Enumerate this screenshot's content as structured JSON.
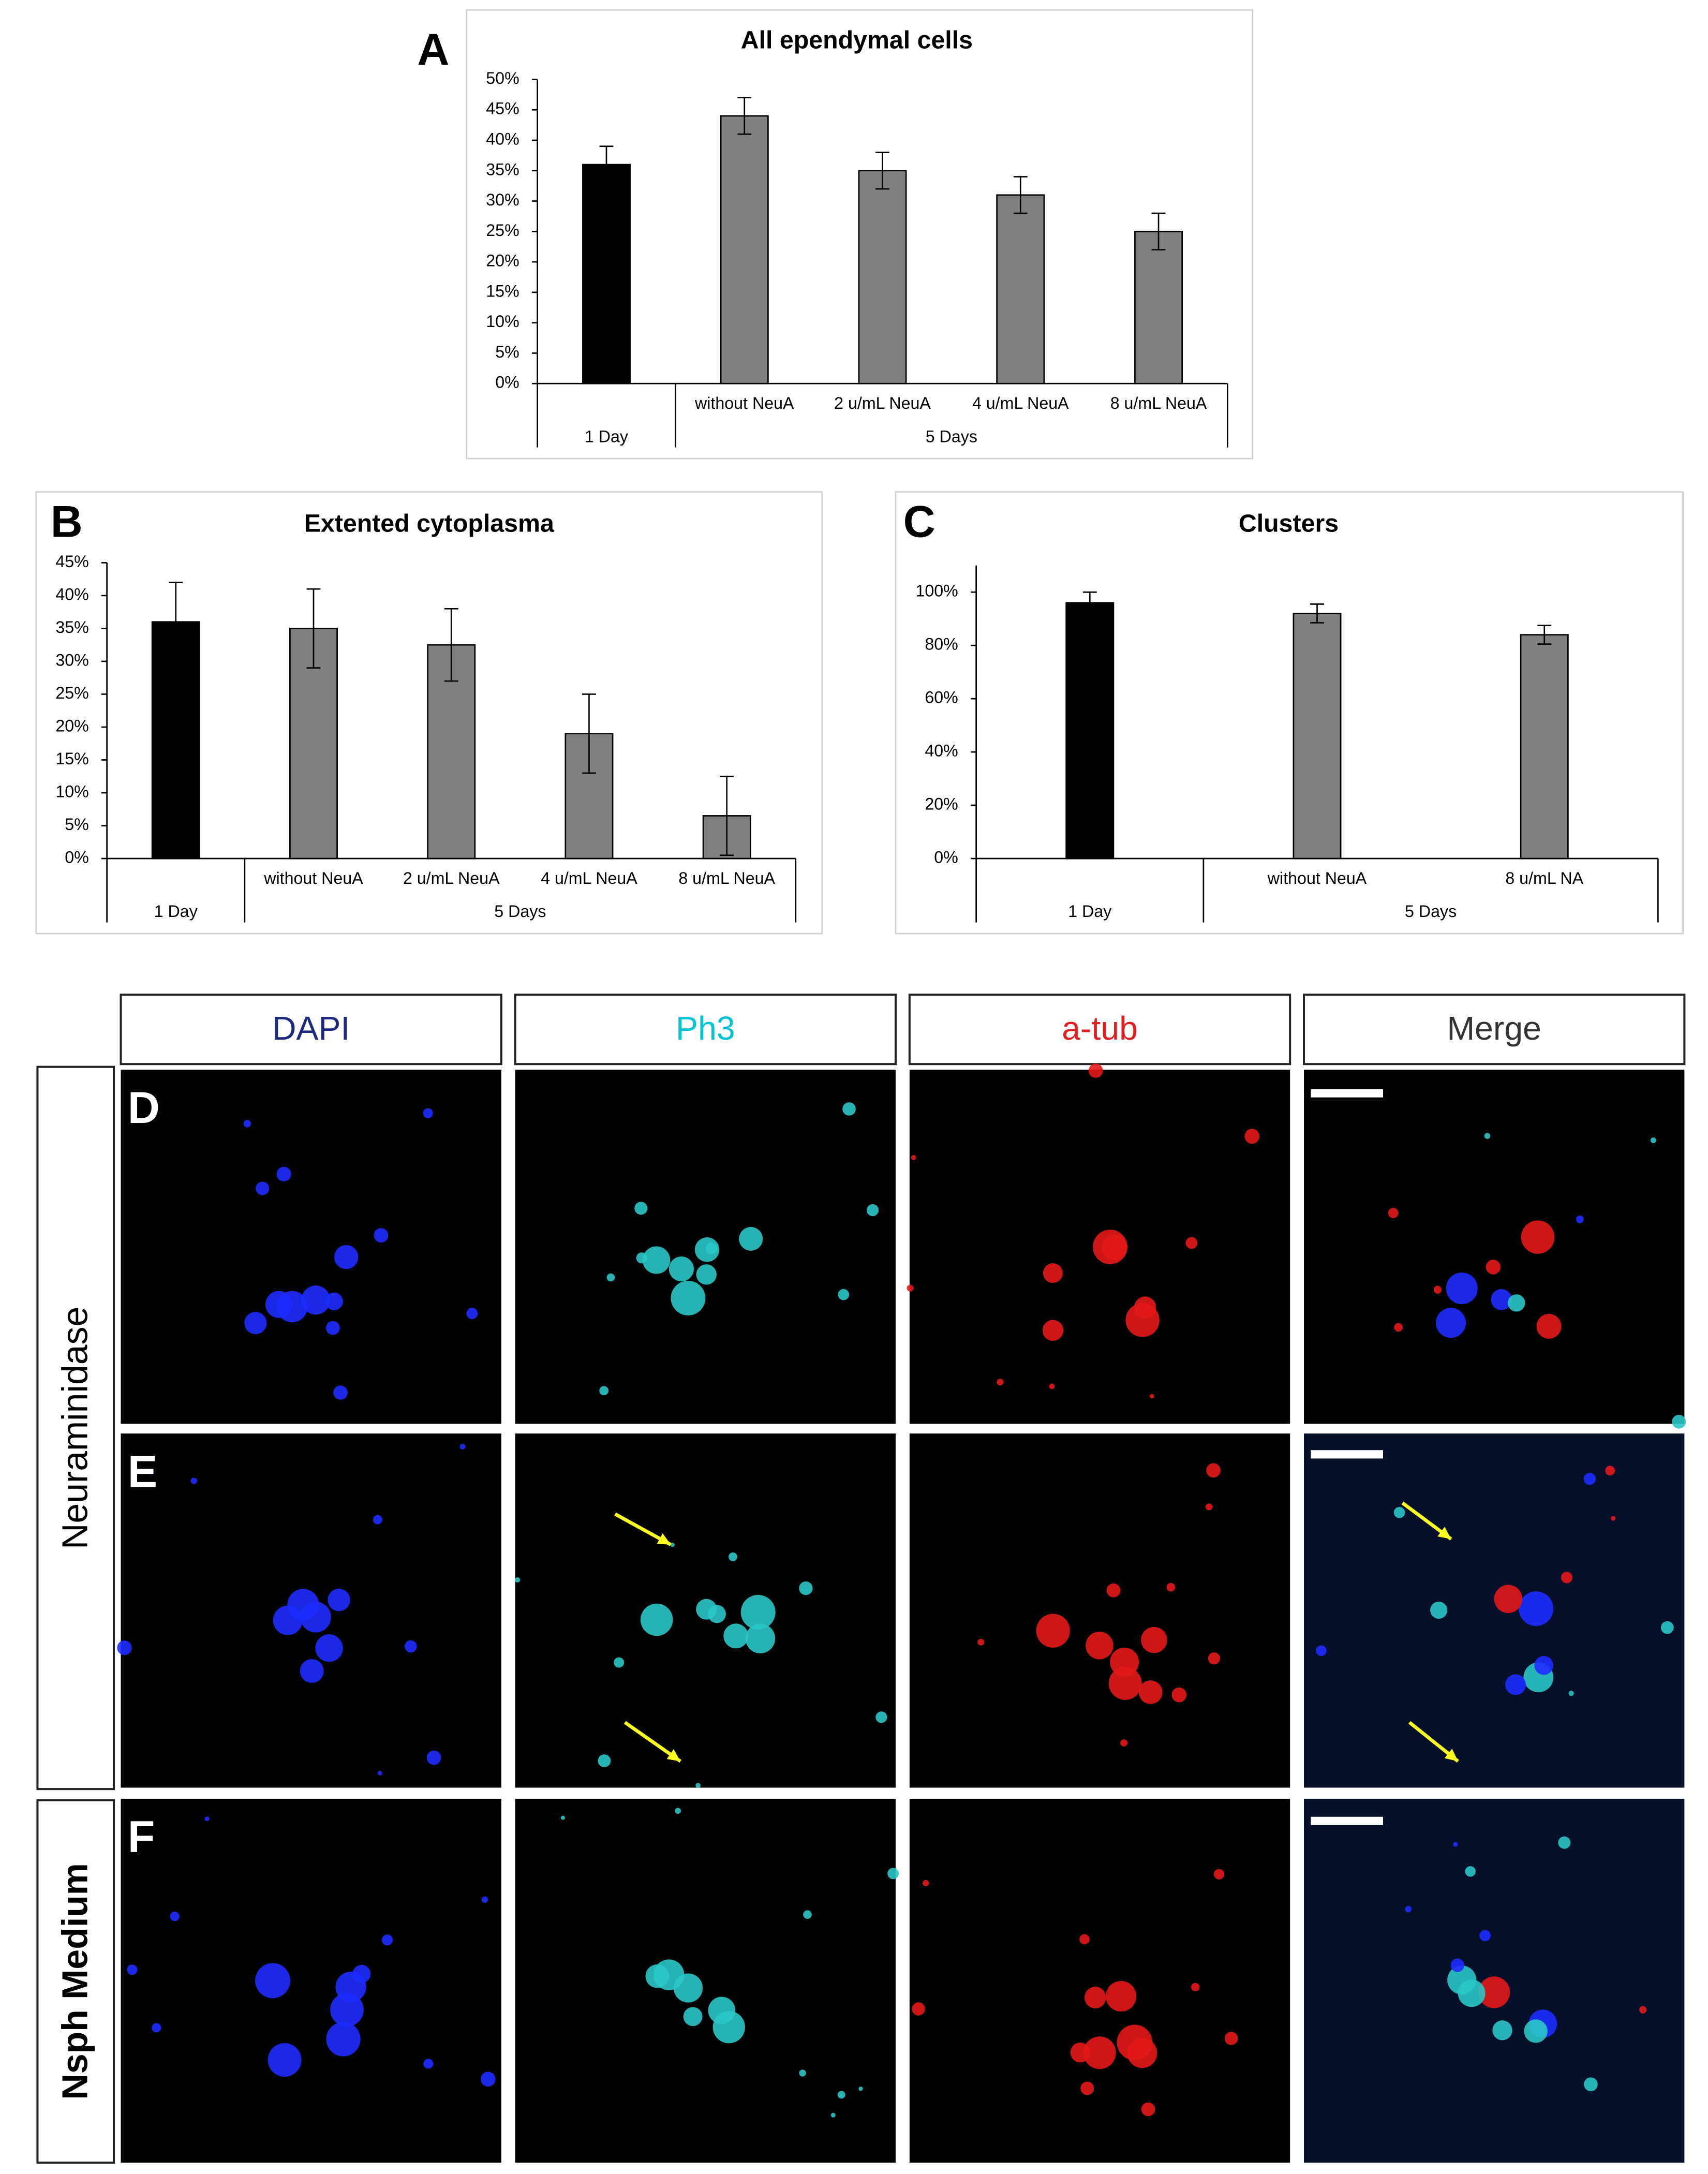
{
  "chart_data": [
    {
      "type": "bar",
      "panel_label": "A",
      "title": "All ependymal cells",
      "categories": [
        null,
        "without NeuA",
        "2 u/mL NeuA",
        "4 u/mL NeuA",
        "8 u/mL NeuA"
      ],
      "groups": [
        {
          "name": "1 Day",
          "size": 1
        },
        {
          "name": "5 Days",
          "size": 4
        }
      ],
      "values": [
        36,
        44,
        35,
        31,
        25
      ],
      "errors": [
        3,
        3,
        3,
        3,
        3
      ],
      "colors": [
        "#000000",
        "#808080",
        "#808080",
        "#808080",
        "#808080"
      ],
      "ylim": [
        0,
        50
      ],
      "yticks": [
        {
          "value": 0,
          "label": "0%"
        },
        {
          "value": 5,
          "label": "5%"
        },
        {
          "value": 10,
          "label": "10%"
        },
        {
          "value": 15,
          "label": "15%"
        },
        {
          "value": 20,
          "label": "20%"
        },
        {
          "value": 25,
          "label": "25%"
        },
        {
          "value": 30,
          "label": "30%"
        },
        {
          "value": 35,
          "label": "35%"
        },
        {
          "value": 40,
          "label": "40%"
        },
        {
          "value": 45,
          "label": "45%"
        },
        {
          "value": 50,
          "label": "50%"
        }
      ]
    },
    {
      "type": "bar",
      "panel_label": "B",
      "title": "Extented cytoplasma",
      "categories": [
        null,
        "without NeuA",
        "2 u/mL NeuA",
        "4 u/mL NeuA",
        "8 u/mL NeuA"
      ],
      "groups": [
        {
          "name": "1 Day",
          "size": 1
        },
        {
          "name": "5 Days",
          "size": 4
        }
      ],
      "values": [
        36,
        35,
        32.5,
        19,
        6.5
      ],
      "errors": [
        6,
        6,
        5.5,
        6,
        6
      ],
      "colors": [
        "#000000",
        "#808080",
        "#808080",
        "#808080",
        "#808080"
      ],
      "ylim": [
        0,
        45
      ],
      "yticks": [
        {
          "value": 0,
          "label": "0%"
        },
        {
          "value": 5,
          "label": "5%"
        },
        {
          "value": 10,
          "label": "10%"
        },
        {
          "value": 15,
          "label": "15%"
        },
        {
          "value": 20,
          "label": "20%"
        },
        {
          "value": 25,
          "label": "25%"
        },
        {
          "value": 30,
          "label": "30%"
        },
        {
          "value": 35,
          "label": "35%"
        },
        {
          "value": 40,
          "label": "40%"
        },
        {
          "value": 45,
          "label": "45%"
        }
      ]
    },
    {
      "type": "bar",
      "panel_label": "C",
      "title": "Clusters",
      "categories": [
        null,
        "without NeuA",
        "8 u/mL NA"
      ],
      "groups": [
        {
          "name": "1 Day",
          "size": 1
        },
        {
          "name": "5 Days",
          "size": 2
        }
      ],
      "values": [
        96,
        92,
        84
      ],
      "errors": [
        4,
        3.5,
        3.5
      ],
      "colors": [
        "#000000",
        "#808080",
        "#808080"
      ],
      "ylim": [
        0,
        110
      ],
      "yticks": [
        {
          "value": 0,
          "label": "0%"
        },
        {
          "value": 20,
          "label": "20%"
        },
        {
          "value": 40,
          "label": "40%"
        },
        {
          "value": 60,
          "label": "60%"
        },
        {
          "value": 80,
          "label": "80%"
        },
        {
          "value": 100,
          "label": "100%"
        }
      ]
    }
  ],
  "microscopy": {
    "columns": [
      {
        "label": "DAPI",
        "color": "#1a2a80"
      },
      {
        "label": "Ph3",
        "color": "#00c4d4"
      },
      {
        "label": "a-tub",
        "color": "#e02020"
      },
      {
        "label": "Merge",
        "color": "#333333"
      }
    ],
    "row_groups": [
      {
        "label": "Neuraminidase"
      },
      {
        "label": "Nsph Medium"
      }
    ],
    "panels": [
      "D",
      "E",
      "F"
    ]
  }
}
